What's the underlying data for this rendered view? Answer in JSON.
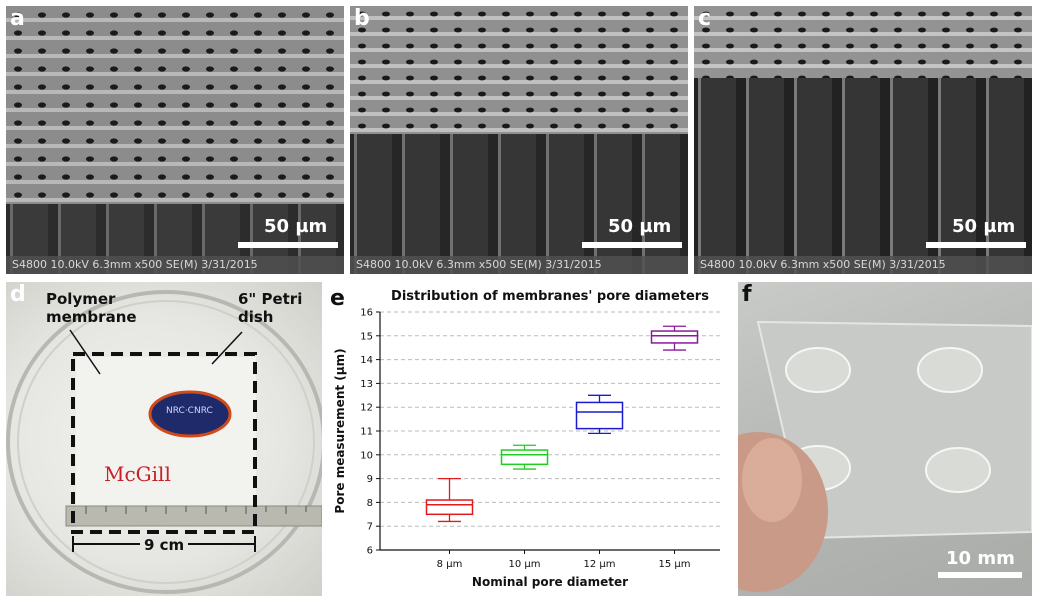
{
  "panels": {
    "a": {
      "letter": "a",
      "scale": "50 µm",
      "caption": "S4800 10.0kV 6.3mm x500 SE(M) 3/31/2015"
    },
    "b": {
      "letter": "b",
      "scale": "50 µm",
      "caption": "S4800 10.0kV 6.3mm x500 SE(M) 3/31/2015"
    },
    "c": {
      "letter": "c",
      "scale": "50 µm",
      "caption": "S4800 10.0kV 6.3mm x500 SE(M) 3/31/2015"
    },
    "d": {
      "letter": "d",
      "label_membrane": "Polymer\nmembrane",
      "label_dish": "6\" Petri\ndish",
      "scale": "9 cm",
      "logo_text": "McGill",
      "nrc_text": "NRC·CNRC"
    },
    "e": {
      "letter": "e"
    },
    "f": {
      "letter": "f",
      "scale": "10 mm"
    }
  },
  "chart_data": {
    "type": "box",
    "title": "Distribution of membranes' pore diameters",
    "xlabel": "Nominal pore diameter",
    "ylabel": "Pore measurement (µm)",
    "ylim": [
      6,
      16
    ],
    "yticks": [
      6,
      7,
      8,
      9,
      10,
      11,
      12,
      13,
      14,
      15,
      16
    ],
    "grid": true,
    "categories": [
      "8 µm",
      "10 µm",
      "12 µm",
      "15 µm"
    ],
    "colors": [
      "#e01b1b",
      "#1fcf1f",
      "#1a1ad0",
      "#8a1a9a"
    ],
    "boxes": [
      {
        "min": 7.2,
        "q1": 7.5,
        "median": 7.9,
        "q3": 8.1,
        "max": 9.0
      },
      {
        "min": 9.4,
        "q1": 9.6,
        "median": 10.0,
        "q3": 10.2,
        "max": 10.4
      },
      {
        "min": 10.9,
        "q1": 11.1,
        "median": 11.8,
        "q3": 12.2,
        "max": 12.5
      },
      {
        "min": 14.4,
        "q1": 14.7,
        "median": 15.0,
        "q3": 15.2,
        "max": 15.4
      }
    ]
  }
}
